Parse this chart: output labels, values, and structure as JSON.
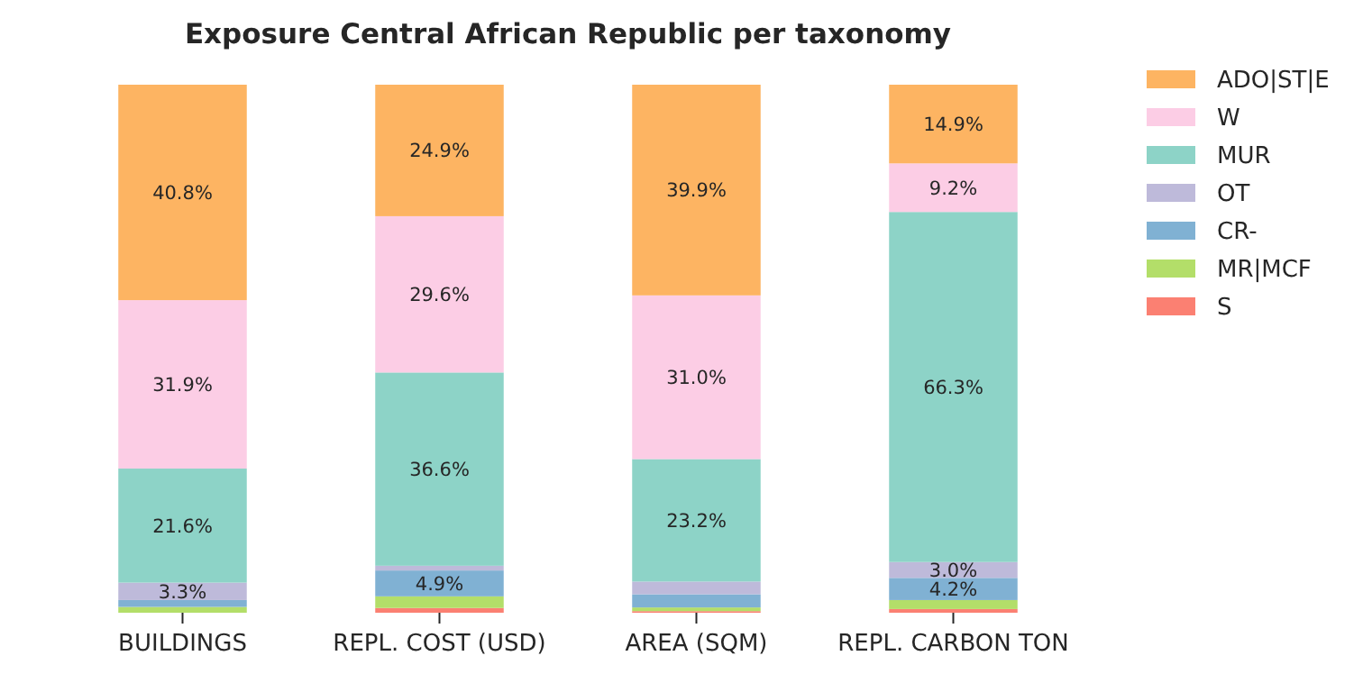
{
  "chart_data": {
    "type": "bar",
    "stacked": true,
    "title": "Exposure Central African Republic per taxonomy",
    "categories": [
      "BUILDINGS",
      "REPL. COST (USD)",
      "AREA (SQM)",
      "REPL. CARBON TON"
    ],
    "legend": "right",
    "series": [
      {
        "name": "S",
        "color": "#fb8072",
        "values": [
          0,
          0.9,
          0.3,
          0.7
        ],
        "value_labels": [
          null,
          null,
          null,
          null
        ]
      },
      {
        "name": "MR|MCF",
        "color": "#b3de69",
        "values": [
          1.1,
          2.2,
          0.7,
          1.7
        ],
        "value_labels": [
          null,
          null,
          null,
          null
        ]
      },
      {
        "name": "CR-",
        "color": "#80b1d3",
        "values": [
          1.3,
          4.9,
          2.5,
          4.2
        ],
        "value_labels": [
          null,
          "4.9%",
          null,
          "4.2%"
        ]
      },
      {
        "name": "OT",
        "color": "#bebada",
        "values": [
          3.3,
          0.9,
          2.4,
          3.0
        ],
        "value_labels": [
          "3.3%",
          null,
          null,
          "3.0%"
        ]
      },
      {
        "name": "MUR",
        "color": "#8dd3c7",
        "values": [
          21.6,
          36.6,
          23.2,
          66.3
        ],
        "value_labels": [
          "21.6%",
          "36.6%",
          "23.2%",
          "66.3%"
        ]
      },
      {
        "name": "W",
        "color": "#fccde5",
        "values": [
          31.9,
          29.6,
          31.0,
          9.2
        ],
        "value_labels": [
          "31.9%",
          "29.6%",
          "31.0%",
          "9.2%"
        ]
      },
      {
        "name": "ADO|ST|E",
        "color": "#fdb462",
        "values": [
          40.8,
          24.9,
          39.9,
          14.9
        ],
        "value_labels": [
          "40.8%",
          "24.9%",
          "39.9%",
          "14.9%"
        ]
      }
    ]
  }
}
